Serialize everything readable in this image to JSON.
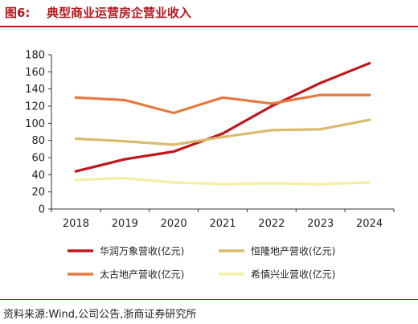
{
  "header": {
    "figure_number": "图6:",
    "title": "典型商业运营房企营业收入"
  },
  "source": "资料来源:Wind,公司公告,浙商证券研究所",
  "chart_data": {
    "type": "line",
    "title": "",
    "xlabel": "",
    "ylabel": "",
    "x": [
      "2018",
      "2019",
      "2020",
      "2021",
      "2022",
      "2023",
      "2024"
    ],
    "ylim": [
      0,
      180
    ],
    "yticks": [
      0,
      20,
      40,
      60,
      80,
      100,
      120,
      140,
      160,
      180
    ],
    "grid": false,
    "legend_position": "bottom",
    "series": [
      {
        "name": "华润万象营收(亿元)",
        "color": "#c0161c",
        "values": [
          44,
          58,
          67,
          88,
          120,
          147,
          170
        ]
      },
      {
        "name": "恒隆地产营收(亿元)",
        "color": "#d9bb6e",
        "values": [
          82,
          79,
          75,
          84,
          92,
          93,
          104
        ]
      },
      {
        "name": "太古地产营收(亿元)",
        "color": "#e5793f",
        "values": [
          130,
          127,
          112,
          130,
          123,
          133,
          133
        ]
      },
      {
        "name": "希慎兴业营收(亿元)",
        "color": "#f4efa3",
        "values": [
          34,
          36,
          31,
          29,
          30,
          29,
          31
        ]
      }
    ]
  }
}
